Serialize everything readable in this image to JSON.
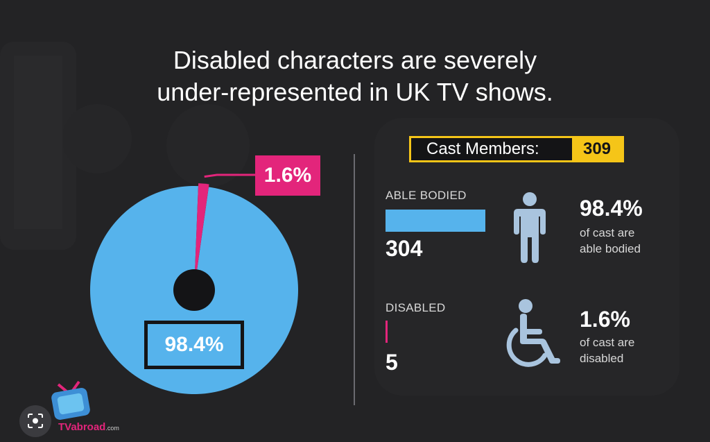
{
  "title_line1": "Disabled characters are severely",
  "title_line2": "under-represented in UK TV shows.",
  "colors": {
    "able_bodied": "#56b3ec",
    "disabled": "#e3257b",
    "accent": "#f5c518",
    "background": "#232325"
  },
  "cast": {
    "label": "Cast Members:",
    "total": "309"
  },
  "groups": [
    {
      "label": "ABLE BODIED",
      "count": "304",
      "percent": "98.4%",
      "text_line1": "of cast are",
      "text_line2": "able bodied",
      "icon": "standing-person-icon"
    },
    {
      "label": "DISABLED",
      "count": "5",
      "percent": "1.6%",
      "text_line1": "of cast are",
      "text_line2": "disabled",
      "icon": "wheelchair-icon"
    }
  ],
  "chart_data": {
    "type": "pie",
    "categories": [
      "Able bodied",
      "Disabled"
    ],
    "values": [
      98.4,
      1.6
    ],
    "labels": [
      "98.4%",
      "1.6%"
    ],
    "counts": [
      304,
      5
    ]
  },
  "logo": {
    "text": "TVabroad",
    "suffix": ".com"
  }
}
